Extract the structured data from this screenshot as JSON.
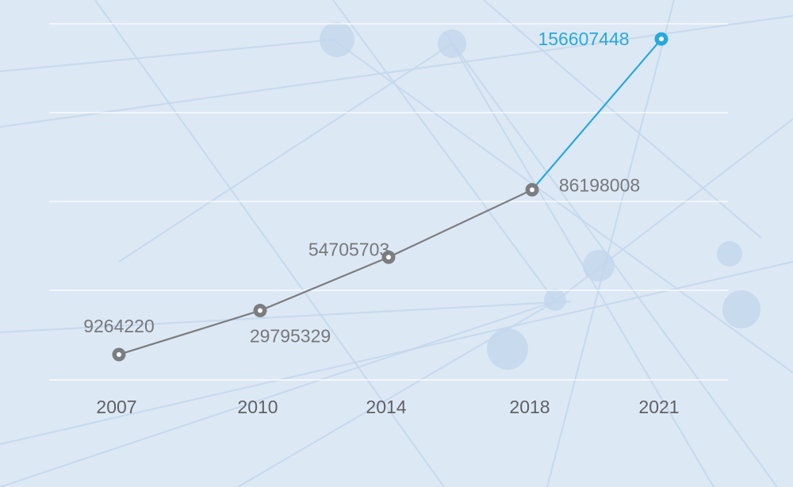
{
  "chart_data": {
    "type": "line",
    "categories": [
      "2007",
      "2010",
      "2014",
      "2018",
      "2021"
    ],
    "series": [
      {
        "values": [
          9264220,
          29795329,
          54705703,
          86198008,
          156607448
        ]
      }
    ],
    "data_labels": [
      "9264220",
      "29795329",
      "54705703",
      "86198008",
      "156607448"
    ],
    "ylim": [
      0,
      160000000
    ],
    "grid": true,
    "colors": {
      "line": "#7b7d80",
      "highlight": "#29a8de",
      "grid": "#ffffff",
      "background": "#dde8f5"
    }
  }
}
